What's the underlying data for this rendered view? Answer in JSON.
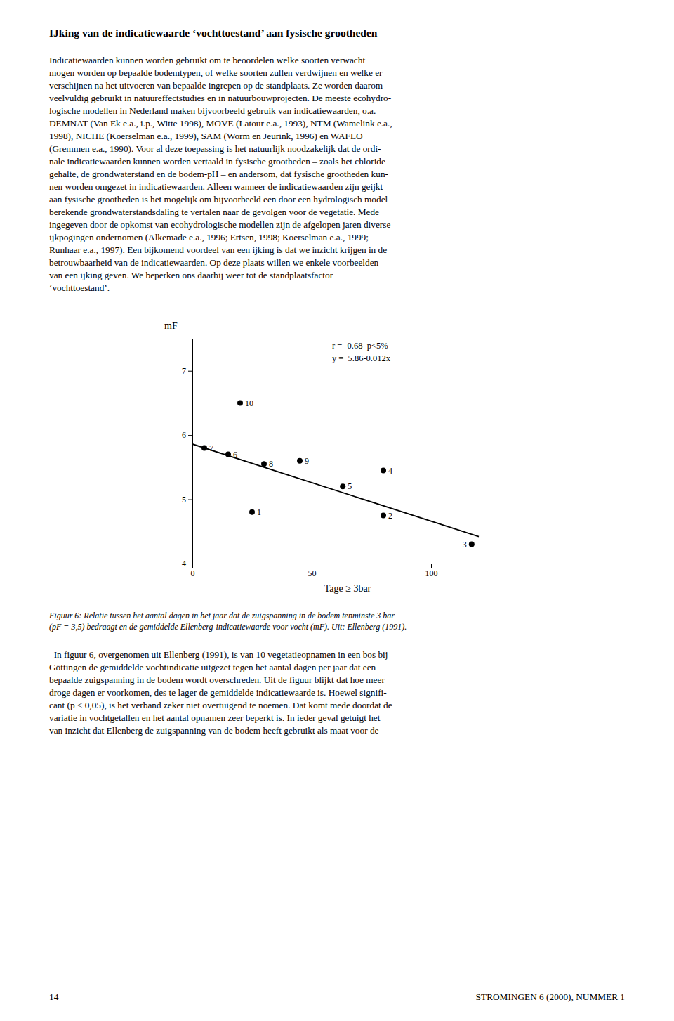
{
  "page": {
    "title": "IJking van de indicatiewaarde ‘vochttoestand’ aan fysische grootheden",
    "body_1": "Indicatiewaarden kunnen worden gebruikt om te beoordelen welke soorten verwacht\nmogen worden op bepaalde bodemtypen, of welke soorten zullen verdwijnen en welke er\nverschijnen na het uitvoeren van bepaalde ingrepen op de standplaats. Ze worden daarom\nveelvuldig gebruikt in natuureffectstudies en in natuurbouwprojecten. De meeste ecohydro-\nlogische modellen in Nederland maken bijvoorbeeld gebruik van indicatiewaarden, o.a.\nDEMNAT (Van Ek e.a., i.p., Witte 1998), MOVE (Latour e.a., 1993), NTM (Wamelink e.a.,\n1998), NICHE (Koerselman e.a., 1999), SAM (Worm en Jeurink, 1996) en WAFLO\n(Gremmen e.a., 1990). Voor al deze toepassing is het natuurlijk noodzakelijk dat de ordi-\nnale indicatiewaarden kunnen worden vertaald in fysische grootheden – zoals het chloride-\ngehalte, de grondwaterstand en de bodem-pH – en andersom, dat fysische grootheden kun-\nnen worden omgezet in indicatiewaarden. Alleen wanneer de indicatiewaarden zijn geijkt\naan fysische grootheden is het mogelijk om bijvoorbeeld een door een hydrologisch model\nberekende grondwaterstandsdaling te vertalen naar de gevolgen voor de vegetatie. Mede\ningegeven door de opkomst van ecohydrologische modellen zijn de afgelopen jaren diverse\nijkpogingen ondernomen (Alkemade e.a., 1996; Ertsen, 1998; Koerselman e.a., 1999;\nRunhaar e.a., 1997). Een bijkomend voordeel van een ijking is dat we inzicht krijgen in de\nbetrouwbaarheid van de indicatiewaarden. Op deze plaats willen we enkele voorbeelden\nvan een ijking geven. We beperken ons daarbij weer tot de standplaatsfactor\n‘vochttoestand’.",
    "caption": "Figuur 6: Relatie tussen het aantal dagen in het jaar dat de zuigspanning in de bodem tenminste 3 bar\n(pF = 3,5) bedraagt en de gemiddelde Ellenberg-indicatiewaarde voor vocht (mF). Uit: Ellenberg (1991).",
    "body_2": "  In figuur 6, overgenomen uit Ellenberg (1991), is van 10 vegetatieopnamen in een bos bij\nGöttingen de gemiddelde vochtindicatie uitgezet tegen het aantal dagen per jaar dat een\nbepaalde zuigspanning in de bodem wordt overschreden. Uit de figuur blijkt dat hoe meer\ndroge dagen er voorkomen, des te lager de gemiddelde indicatiewaarde is. Hoewel signifi-\ncant (p < 0,05), is het verband zeker niet overtuigend te noemen. Dat komt mede doordat de\nvariatie in vochtgetallen en het aantal opnamen zeer beperkt is. In ieder geval getuigt het\nvan inzicht dat Ellenberg de zuigspanning van de bodem heeft gebruikt als maat voor de",
    "footer_left": "14",
    "footer_right": "STROMINGEN 6 (2000), NUMMER 1"
  },
  "chart_data": {
    "type": "scatter",
    "xlabel": "Tage ≥ 3bar",
    "ylabel": "mF",
    "xlim": [
      0,
      130
    ],
    "ylim": [
      4.0,
      7.5
    ],
    "xticks": [
      0,
      50,
      100
    ],
    "yticks": [
      4,
      5,
      6,
      7
    ],
    "annotations": [
      "r = -0.68  p<5%",
      "y =  5.86-0.012x"
    ],
    "series": [
      {
        "type": "scatter",
        "color": "#000000",
        "x": [
          5,
          15,
          30,
          45,
          63,
          80,
          20,
          25,
          80,
          117
        ],
        "values": [
          5.8,
          5.7,
          5.55,
          5.6,
          5.2,
          5.45,
          6.5,
          4.8,
          4.75,
          4.3
        ],
        "labels": [
          "7",
          "6",
          "8",
          "9",
          "5",
          "4",
          "10",
          "1",
          "2",
          "3"
        ]
      },
      {
        "type": "line",
        "color": "#000000",
        "x": [
          0,
          120
        ],
        "values": [
          5.86,
          4.42
        ]
      }
    ]
  }
}
